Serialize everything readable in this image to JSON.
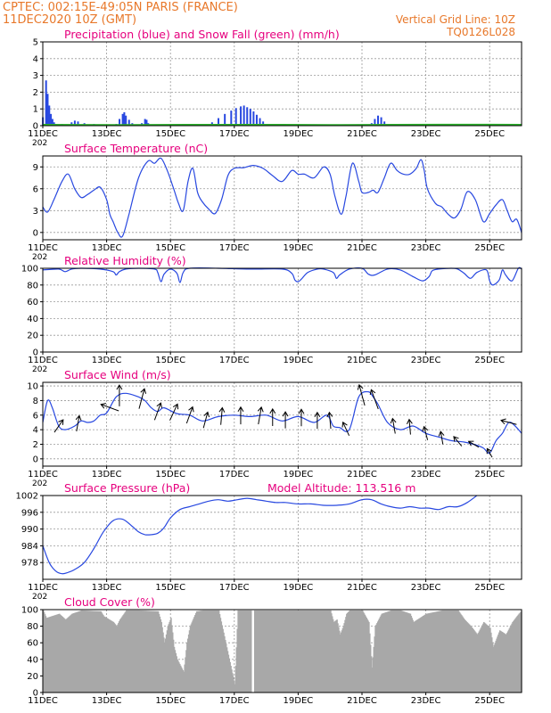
{
  "header": {
    "station": "CPTEC:  002:15E-49:05N  PARIS (FRANCE)",
    "run": "11DEC2020 10Z (GMT)",
    "grid_note": "Vertical Grid Line: 10Z",
    "code": "TQ0126L028",
    "colors": {
      "header": "#e8782a",
      "title": "#e6007e",
      "line": "#2848e0",
      "snow": "#2cb22c",
      "cloud": "#a8a8a8"
    }
  },
  "x_axis": {
    "ticks": [
      "11DEC",
      "13DEC",
      "15DEC",
      "17DEC",
      "19DEC",
      "21DEC",
      "23DEC",
      "25DEC"
    ],
    "tick_days": [
      0,
      2,
      4,
      6,
      8,
      10,
      12,
      14
    ],
    "cut_label": "202",
    "day_range": [
      0,
      15
    ]
  },
  "chart_data": [
    {
      "type": "bar",
      "title": "Precipitation (blue) and Snow Fall (green) (mm/h)",
      "ylim": [
        0,
        5
      ],
      "yticks": [
        0,
        1,
        2,
        3,
        4,
        5
      ],
      "series": [
        {
          "name": "Precipitation",
          "color": "blue",
          "points": [
            [
              0.0,
              0.5
            ],
            [
              0.1,
              2.7
            ],
            [
              0.15,
              1.9
            ],
            [
              0.2,
              1.2
            ],
            [
              0.25,
              0.7
            ],
            [
              0.3,
              0.4
            ],
            [
              0.35,
              0.2
            ],
            [
              0.4,
              0.1
            ],
            [
              0.6,
              0.1
            ],
            [
              0.9,
              0.2
            ],
            [
              1.0,
              0.3
            ],
            [
              1.1,
              0.25
            ],
            [
              1.3,
              0.15
            ],
            [
              1.6,
              0.1
            ],
            [
              2.3,
              0.1
            ],
            [
              2.4,
              0.4
            ],
            [
              2.5,
              0.7
            ],
            [
              2.55,
              0.8
            ],
            [
              2.6,
              0.6
            ],
            [
              2.7,
              0.35
            ],
            [
              2.8,
              0.15
            ],
            [
              3.1,
              0.15
            ],
            [
              3.2,
              0.4
            ],
            [
              3.25,
              0.35
            ],
            [
              3.3,
              0.15
            ],
            [
              4.1,
              0.05
            ],
            [
              5.0,
              0.1
            ],
            [
              5.3,
              0.2
            ],
            [
              5.5,
              0.45
            ],
            [
              5.7,
              0.7
            ],
            [
              5.9,
              0.9
            ],
            [
              6.05,
              1.05
            ],
            [
              6.2,
              1.15
            ],
            [
              6.3,
              1.2
            ],
            [
              6.4,
              1.1
            ],
            [
              6.5,
              1.0
            ],
            [
              6.6,
              0.85
            ],
            [
              6.7,
              0.65
            ],
            [
              6.8,
              0.45
            ],
            [
              6.9,
              0.25
            ],
            [
              7.0,
              0.1
            ],
            [
              10.1,
              0.05
            ],
            [
              10.3,
              0.15
            ],
            [
              10.4,
              0.4
            ],
            [
              10.5,
              0.6
            ],
            [
              10.6,
              0.5
            ],
            [
              10.7,
              0.25
            ],
            [
              10.8,
              0.08
            ],
            [
              14.6,
              0.05
            ],
            [
              14.8,
              0.1
            ]
          ]
        },
        {
          "name": "Snow Fall",
          "color": "green",
          "points": [
            [
              0.0,
              0.05
            ],
            [
              2.5,
              0.04
            ],
            [
              4.5,
              0.05
            ],
            [
              7.5,
              0.05
            ],
            [
              9.0,
              0.04
            ],
            [
              11.0,
              0.05
            ],
            [
              12.5,
              0.06
            ],
            [
              14.0,
              0.06
            ],
            [
              15.0,
              0.05
            ]
          ]
        }
      ]
    },
    {
      "type": "line",
      "title": "Surface Temperature (nC)",
      "ylim": [
        -1,
        10.5
      ],
      "yticks": [
        0,
        3,
        6,
        9
      ],
      "series": [
        {
          "name": "Temperature",
          "color": "blue",
          "x": [
            0,
            0.15,
            0.35,
            0.6,
            0.8,
            1.0,
            1.2,
            1.4,
            1.6,
            1.8,
            2.0,
            2.1,
            2.2,
            2.35,
            2.5,
            2.7,
            3.0,
            3.3,
            3.5,
            3.7,
            3.9,
            4.1,
            4.25,
            4.4,
            4.55,
            4.7,
            4.85,
            5.0,
            5.2,
            5.4,
            5.6,
            5.8,
            6.0,
            6.3,
            6.6,
            6.9,
            7.2,
            7.5,
            7.8,
            8.0,
            8.2,
            8.5,
            8.8,
            9.0,
            9.15,
            9.35,
            9.5,
            9.7,
            9.9,
            10.0,
            10.2,
            10.35,
            10.5,
            10.7,
            10.9,
            11.1,
            11.3,
            11.5,
            11.7,
            11.85,
            11.95,
            12.05,
            12.3,
            12.5,
            12.7,
            12.9,
            13.1,
            13.3,
            13.55,
            13.8,
            14.0,
            14.2,
            14.4,
            14.55,
            14.7,
            14.85,
            15.0
          ],
          "y": [
            3.5,
            2.8,
            4.5,
            7.0,
            8.0,
            6.0,
            4.8,
            5.2,
            5.8,
            6.2,
            4.5,
            2.5,
            1.5,
            0.0,
            -0.5,
            2.5,
            7.5,
            9.8,
            9.5,
            10.2,
            8.5,
            6.0,
            4.0,
            3.0,
            7.0,
            8.8,
            5.5,
            4.2,
            3.2,
            2.6,
            4.5,
            7.8,
            8.8,
            8.9,
            9.2,
            8.8,
            7.8,
            7.0,
            8.5,
            8.0,
            8.0,
            7.5,
            9.0,
            8.0,
            5.0,
            2.5,
            5.0,
            9.5,
            7.0,
            5.5,
            5.5,
            5.8,
            5.5,
            7.5,
            9.5,
            8.5,
            8.0,
            8.0,
            8.8,
            10.0,
            8.5,
            6.0,
            4.0,
            3.5,
            2.5,
            2.0,
            3.2,
            5.6,
            4.5,
            1.5,
            2.6,
            3.8,
            4.5,
            3.0,
            1.5,
            1.8,
            0.0
          ]
        }
      ]
    },
    {
      "type": "line",
      "title": "Relative Humidity (%)",
      "ylim": [
        0,
        100
      ],
      "yticks": [
        0,
        20,
        40,
        60,
        80,
        100
      ],
      "series": [
        {
          "name": "Humidity",
          "color": "blue",
          "x": [
            0,
            0.5,
            0.7,
            0.9,
            1.2,
            1.8,
            2.2,
            2.3,
            2.4,
            2.6,
            3.0,
            3.5,
            3.6,
            3.7,
            3.8,
            4.0,
            4.2,
            4.3,
            4.4,
            4.6,
            5.5,
            6.5,
            7.5,
            7.8,
            7.9,
            8.0,
            8.1,
            8.3,
            8.6,
            8.8,
            9.1,
            9.2,
            9.3,
            9.6,
            10.0,
            10.2,
            10.4,
            10.8,
            11.2,
            11.6,
            11.9,
            12.1,
            12.2,
            12.4,
            12.8,
            13.0,
            13.2,
            13.4,
            13.6,
            13.9,
            14.0,
            14.1,
            14.3,
            14.4,
            14.5,
            14.7,
            14.9,
            15.0
          ],
          "y": [
            98,
            99,
            96,
            99,
            100,
            99,
            96,
            92,
            96,
            99,
            100,
            99,
            95,
            84,
            93,
            99,
            94,
            83,
            95,
            100,
            100,
            99,
            99,
            94,
            86,
            84,
            87,
            95,
            99,
            99,
            95,
            88,
            92,
            99,
            100,
            93,
            92,
            99,
            98,
            90,
            85,
            90,
            97,
            99,
            100,
            99,
            94,
            88,
            95,
            98,
            85,
            80,
            86,
            98,
            92,
            85,
            100,
            99
          ]
        }
      ]
    },
    {
      "type": "line",
      "title": "Surface Wind (m/s)",
      "ylim": [
        -1,
        10.5
      ],
      "yticks": [
        0,
        2,
        4,
        6,
        8,
        10
      ],
      "series": [
        {
          "name": "Wind speed",
          "color": "blue",
          "x": [
            0,
            0.15,
            0.3,
            0.5,
            0.7,
            1.0,
            1.2,
            1.4,
            1.6,
            1.8,
            2.0,
            2.3,
            2.6,
            3.0,
            3.2,
            3.4,
            3.6,
            3.8,
            4.2,
            4.6,
            5.0,
            5.5,
            6.0,
            6.5,
            7.0,
            7.5,
            8.0,
            8.5,
            8.9,
            9.1,
            9.3,
            9.6,
            9.9,
            10.2,
            10.35,
            10.5,
            10.8,
            11.2,
            11.6,
            12.0,
            12.4,
            12.8,
            13.2,
            13.5,
            13.8,
            14.0,
            14.2,
            14.4,
            14.6,
            14.8,
            15.0
          ],
          "y": [
            5.0,
            8.0,
            7.0,
            4.5,
            4.0,
            4.5,
            5.2,
            5.0,
            5.2,
            6.0,
            6.3,
            8.5,
            9.0,
            8.5,
            8.0,
            7.0,
            6.5,
            7.0,
            6.2,
            6.0,
            5.2,
            5.8,
            6.0,
            5.8,
            6.0,
            5.2,
            5.8,
            5.0,
            6.0,
            4.5,
            4.3,
            4.0,
            8.5,
            9.2,
            8.5,
            7.5,
            5.0,
            4.0,
            4.5,
            3.5,
            3.0,
            2.5,
            2.3,
            2.0,
            1.5,
            0.8,
            2.5,
            3.5,
            5.0,
            4.5,
            3.5
          ]
        }
      ],
      "arrows": [
        {
          "x": 0.5,
          "dir": 35
        },
        {
          "x": 1.1,
          "dir": 10
        },
        {
          "x": 2.1,
          "dir": 290
        },
        {
          "x": 2.4,
          "dir": 0
        },
        {
          "x": 3.1,
          "dir": 15
        },
        {
          "x": 3.6,
          "dir": 20
        },
        {
          "x": 4.1,
          "dir": 25
        },
        {
          "x": 4.6,
          "dir": 20
        },
        {
          "x": 5.1,
          "dir": 15
        },
        {
          "x": 5.6,
          "dir": 5
        },
        {
          "x": 6.2,
          "dir": 0
        },
        {
          "x": 6.8,
          "dir": 10
        },
        {
          "x": 7.2,
          "dir": 0
        },
        {
          "x": 7.6,
          "dir": 0
        },
        {
          "x": 8.1,
          "dir": 0
        },
        {
          "x": 8.6,
          "dir": 0
        },
        {
          "x": 9.0,
          "dir": 355
        },
        {
          "x": 9.5,
          "dir": 335
        },
        {
          "x": 10.0,
          "dir": 345
        },
        {
          "x": 10.4,
          "dir": 340
        },
        {
          "x": 11.0,
          "dir": 350
        },
        {
          "x": 11.5,
          "dir": 355
        },
        {
          "x": 12.0,
          "dir": 345
        },
        {
          "x": 12.5,
          "dir": 350
        },
        {
          "x": 13.0,
          "dir": 320
        },
        {
          "x": 13.5,
          "dir": 300
        },
        {
          "x": 14.0,
          "dir": 330
        },
        {
          "x": 14.6,
          "dir": 285
        }
      ]
    },
    {
      "type": "line",
      "title": "Surface Pressure (hPa)",
      "altitude_label": "Model Altitude: 113.516  m",
      "ylim": [
        972,
        1002
      ],
      "yticks": [
        978,
        984,
        990,
        996,
        1002
      ],
      "series": [
        {
          "name": "Pressure",
          "color": "blue",
          "x": [
            0,
            0.2,
            0.4,
            0.6,
            0.8,
            1.0,
            1.3,
            1.6,
            1.9,
            2.2,
            2.5,
            2.8,
            3.0,
            3.2,
            3.4,
            3.6,
            3.8,
            4.0,
            4.3,
            4.6,
            4.9,
            5.2,
            5.5,
            5.8,
            6.1,
            6.4,
            6.7,
            7.0,
            7.3,
            7.6,
            8.0,
            8.4,
            8.8,
            9.2,
            9.6,
            10.0,
            10.3,
            10.6,
            10.9,
            11.2,
            11.5,
            11.8,
            12.1,
            12.4,
            12.7,
            13.0,
            13.3,
            13.6
          ],
          "y": [
            984,
            978,
            975,
            974,
            974.5,
            975.5,
            978,
            983,
            989,
            993,
            993.5,
            991,
            989,
            988,
            988,
            988.5,
            990.5,
            994,
            997,
            998,
            999,
            1000,
            1000.5,
            1000,
            1000.5,
            1001,
            1000.5,
            1000,
            999.5,
            999.5,
            999,
            999,
            998.5,
            998.5,
            999,
            1000.5,
            1000.5,
            999,
            998,
            997.5,
            998,
            997.5,
            997.5,
            997,
            998,
            998,
            999.5,
            1002
          ]
        }
      ]
    },
    {
      "type": "area",
      "title": "Cloud Cover (%)",
      "ylim": [
        0,
        100
      ],
      "yticks": [
        0,
        20,
        40,
        60,
        80,
        100
      ],
      "series": [
        {
          "name": "Cloud cover",
          "color": "gray",
          "x": [
            0,
            0.1,
            0.5,
            0.7,
            0.9,
            1.2,
            1.8,
            1.9,
            2.2,
            2.3,
            2.4,
            2.6,
            3.0,
            3.6,
            3.7,
            3.8,
            3.9,
            4.0,
            4.1,
            4.2,
            4.4,
            4.5,
            4.6,
            4.8,
            5.0,
            5.5,
            6.0,
            6.1,
            6.2,
            6.3,
            6.5,
            7.0,
            7.5,
            8.0,
            8.5,
            9.0,
            9.1,
            9.2,
            9.3,
            9.4,
            9.5,
            9.6,
            9.7,
            9.8,
            10.0,
            10.2,
            10.3,
            10.4,
            10.6,
            10.9,
            11.2,
            11.5,
            11.6,
            11.8,
            12.0,
            12.5,
            13.0,
            13.2,
            13.4,
            13.6,
            13.8,
            14.0,
            14.1,
            14.3,
            14.5,
            14.7,
            14.9,
            15.0
          ],
          "y": [
            99,
            90,
            95,
            88,
            95,
            99,
            98,
            92,
            85,
            80,
            88,
            99,
            99,
            98,
            85,
            60,
            80,
            90,
            55,
            40,
            25,
            60,
            80,
            98,
            99,
            99,
            10,
            99,
            99,
            99,
            99,
            99,
            99,
            99,
            99,
            99,
            85,
            88,
            70,
            80,
            95,
            99,
            99,
            99,
            99,
            85,
            30,
            80,
            95,
            99,
            99,
            95,
            85,
            90,
            95,
            99,
            99,
            88,
            80,
            70,
            85,
            78,
            55,
            75,
            70,
            85,
            95,
            99
          ]
        }
      ]
    }
  ]
}
